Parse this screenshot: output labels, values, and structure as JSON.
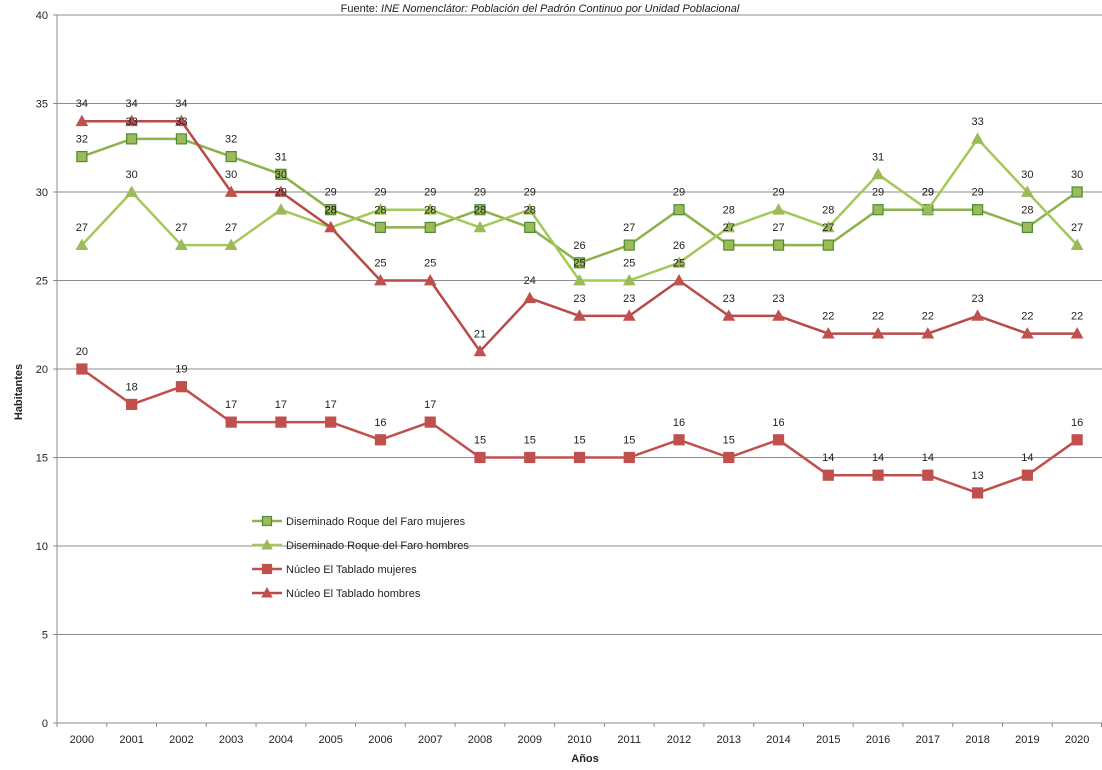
{
  "chart_data": {
    "type": "line",
    "source": "Fuente: ",
    "source_italic": "INE Nomenclátor: Población del Padrón Continuo por Unidad Poblacional",
    "xlabel": "Años",
    "ylabel": "Habitantes",
    "ylim": [
      0,
      40
    ],
    "yticks": [
      "0",
      "5",
      "10",
      "15",
      "20",
      "25",
      "30",
      "35",
      "40"
    ],
    "grid": "horizontal",
    "legend_position": "center-left",
    "categories": [
      "2000",
      "2001",
      "2002",
      "2003",
      "2004",
      "2005",
      "2006",
      "2007",
      "2008",
      "2009",
      "2010",
      "2011",
      "2012",
      "2013",
      "2014",
      "2015",
      "2016",
      "2017",
      "2018",
      "2019",
      "2020"
    ],
    "series": [
      {
        "name": "Diseminado Roque del Faro mujeres",
        "color": "#9bbb59",
        "marker_fill": "#9bbb59",
        "marker_stroke": "#4f8a36",
        "line_color": "#8db24c",
        "marker": "square",
        "values": [
          32,
          33,
          33,
          32,
          31,
          29,
          28,
          28,
          29,
          28,
          26,
          27,
          29,
          27,
          27,
          27,
          29,
          29,
          29,
          28,
          30
        ]
      },
      {
        "name": "Diseminado Roque del Faro hombres",
        "color": "#9bbb59",
        "marker_fill": "#9bbb59",
        "marker_stroke": "#9bbb59",
        "line_color": "#a5c85a",
        "marker": "triangle",
        "values": [
          27,
          30,
          27,
          27,
          29,
          28,
          29,
          29,
          28,
          29,
          25,
          25,
          26,
          28,
          29,
          28,
          31,
          29,
          33,
          30,
          27
        ]
      },
      {
        "name": "Núcleo El Tablado mujeres",
        "color": "#c0504d",
        "marker_fill": "#c0504d",
        "marker_stroke": "#c0504d",
        "line_color": "#c0504d",
        "marker": "square",
        "values": [
          20,
          18,
          19,
          17,
          17,
          17,
          16,
          17,
          15,
          15,
          15,
          15,
          16,
          15,
          16,
          14,
          14,
          14,
          13,
          14,
          16
        ]
      },
      {
        "name": "Núcleo El Tablado hombres",
        "color": "#c0504d",
        "marker_fill": "#c0504d",
        "marker_stroke": "#c0504d",
        "line_color": "#b84a4a",
        "marker": "triangle",
        "values": [
          34,
          34,
          34,
          30,
          30,
          28,
          25,
          25,
          21,
          24,
          23,
          23,
          25,
          23,
          23,
          22,
          22,
          22,
          23,
          22,
          22
        ]
      }
    ]
  }
}
